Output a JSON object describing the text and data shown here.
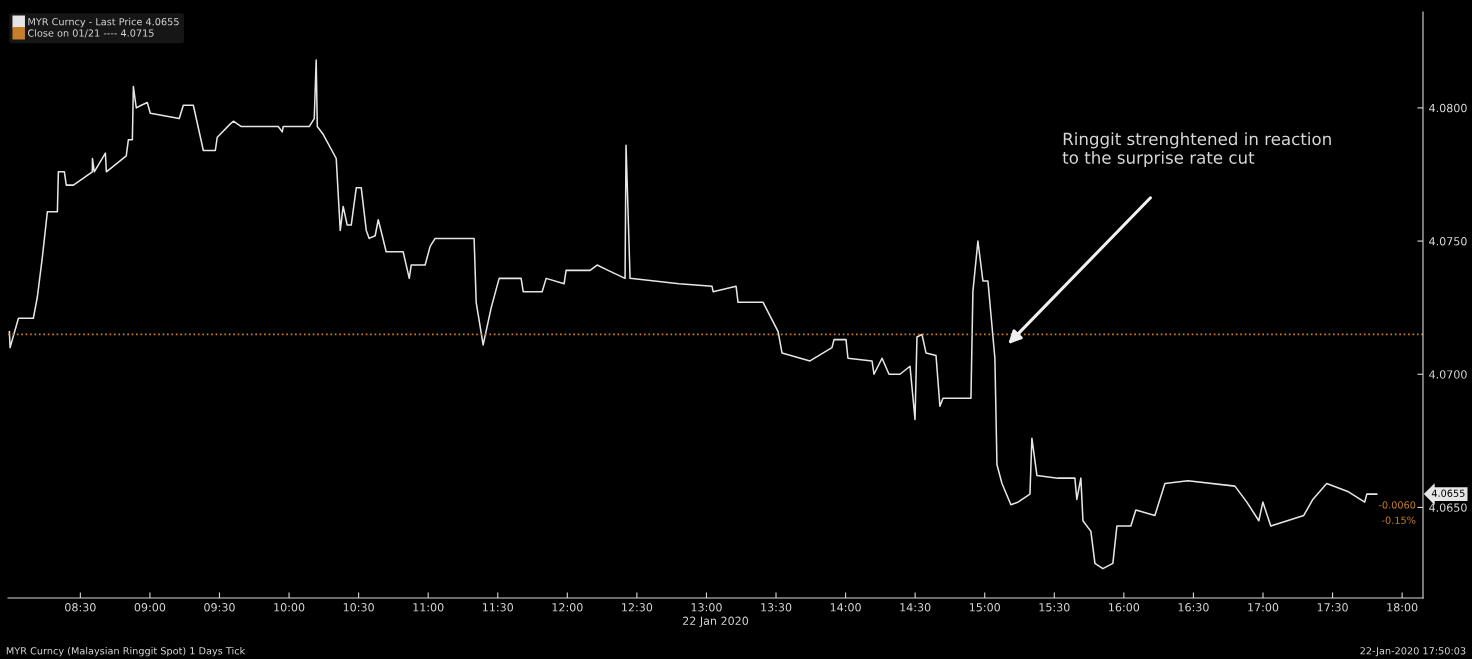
{
  "chart_data": {
    "type": "line",
    "xlabel": "22 Jan 2020",
    "legend": "top left",
    "grid": false,
    "line_style": "solid",
    "marker": "none",
    "xlim": [
      7.98,
      18.15
    ],
    "ylim": [
      4.0616,
      4.0836
    ],
    "xticks": [
      {
        "value": 8.5,
        "label": "08:30"
      },
      {
        "value": 9,
        "label": "09:00"
      },
      {
        "value": 9.5,
        "label": "09:30"
      },
      {
        "value": 10,
        "label": "10:00"
      },
      {
        "value": 10.5,
        "label": "10:30"
      },
      {
        "value": 11,
        "label": "11:00"
      },
      {
        "value": 11.5,
        "label": "11:30"
      },
      {
        "value": 12,
        "label": "12:00"
      },
      {
        "value": 12.5,
        "label": "12:30"
      },
      {
        "value": 13,
        "label": "13:00"
      },
      {
        "value": 13.5,
        "label": "13:30"
      },
      {
        "value": 14,
        "label": "14:00"
      },
      {
        "value": 14.5,
        "label": "14:30"
      },
      {
        "value": 15,
        "label": "15:00"
      },
      {
        "value": 15.5,
        "label": "15:30"
      },
      {
        "value": 16,
        "label": "16:00"
      },
      {
        "value": 16.5,
        "label": "16:30"
      },
      {
        "value": 17,
        "label": "17:00"
      },
      {
        "value": 17.5,
        "label": "17:30"
      },
      {
        "value": 18,
        "label": "18:00"
      }
    ],
    "yticks": [
      {
        "value": 4.065,
        "label": "4.0650"
      },
      {
        "value": 4.07,
        "label": "4.0700"
      },
      {
        "value": 4.075,
        "label": "4.0750"
      },
      {
        "value": 4.08,
        "label": "4.0800"
      }
    ],
    "series": [
      {
        "name": "MYR Curncy - Last Price 4.0655",
        "color": "#e6e6e6",
        "x": [
          7.99,
          7.995,
          8.055,
          8.162,
          8.191,
          8.227,
          8.263,
          8.335,
          8.342,
          8.385,
          8.399,
          8.45,
          8.586,
          8.587,
          8.6,
          8.68,
          8.687,
          8.83,
          8.845,
          8.874,
          8.881,
          8.902,
          8.938,
          8.981,
          9.003,
          9.211,
          9.24,
          9.312,
          9.384,
          9.47,
          9.484,
          9.578,
          9.6,
          9.657,
          9.922,
          9.951,
          9.958,
          10.145,
          10.181,
          10.195,
          10.203,
          10.246,
          10.339,
          10.368,
          10.389,
          10.418,
          10.447,
          10.483,
          10.519,
          10.555,
          10.576,
          10.619,
          10.641,
          10.67,
          10.698,
          10.82,
          10.864,
          10.878,
          10.978,
          11.014,
          11.05,
          11.33,
          11.345,
          11.395,
          11.453,
          11.51,
          11.668,
          11.683,
          11.819,
          11.848,
          11.977,
          11.991,
          12.164,
          12.214,
          12.293,
          12.415,
          12.422,
          12.451,
          12.803,
          13.04,
          13.048,
          13.213,
          13.227,
          13.407,
          13.515,
          13.543,
          13.744,
          13.902,
          13.917,
          14.003,
          14.017,
          14.19,
          14.204,
          14.262,
          14.312,
          14.391,
          14.463,
          14.499,
          14.513,
          14.549,
          14.578,
          14.65,
          14.678,
          14.7,
          14.901,
          14.915,
          14.951,
          14.987,
          15.023,
          15.073,
          15.088,
          15.124,
          15.188,
          15.239,
          15.325,
          15.339,
          15.375,
          15.526,
          15.648,
          15.662,
          15.691,
          15.706,
          15.763,
          15.792,
          15.849,
          15.921,
          15.95,
          16.05,
          16.086,
          16.223,
          16.295,
          16.46,
          16.798,
          16.884,
          16.97,
          16.999,
          17.056,
          17.293,
          17.358,
          17.458,
          17.609,
          17.731,
          17.746,
          17.817
        ],
        "values": [
          4.0716,
          4.071,
          4.0721,
          4.0721,
          4.0729,
          4.0744,
          4.0761,
          4.0761,
          4.0776,
          4.0776,
          4.0771,
          4.0771,
          4.0776,
          4.0781,
          4.0776,
          4.0783,
          4.0776,
          4.0782,
          4.0788,
          4.0788,
          4.0808,
          4.08,
          4.0801,
          4.0802,
          4.0798,
          4.0796,
          4.0801,
          4.0801,
          4.0784,
          4.0784,
          4.0789,
          4.0794,
          4.0795,
          4.0793,
          4.0793,
          4.0791,
          4.0793,
          4.0793,
          4.0796,
          4.0818,
          4.0793,
          4.079,
          4.0781,
          4.0754,
          4.0763,
          4.0756,
          4.0756,
          4.077,
          4.077,
          4.0754,
          4.0751,
          4.0752,
          4.0758,
          4.0752,
          4.0746,
          4.0746,
          4.0736,
          4.0741,
          4.0741,
          4.0748,
          4.0751,
          4.0751,
          4.0727,
          4.0711,
          4.0725,
          4.0736,
          4.0736,
          4.0731,
          4.0731,
          4.0736,
          4.0734,
          4.0739,
          4.0739,
          4.0741,
          4.0739,
          4.0736,
          4.0786,
          4.0736,
          4.0734,
          4.0733,
          4.0731,
          4.0733,
          4.0727,
          4.0727,
          4.0716,
          4.0708,
          4.0705,
          4.071,
          4.0713,
          4.0713,
          4.0706,
          4.0705,
          4.07,
          4.0706,
          4.07,
          4.07,
          4.0703,
          4.0683,
          4.0714,
          4.0715,
          4.0708,
          4.0707,
          4.0688,
          4.0691,
          4.0691,
          4.0731,
          4.075,
          4.0735,
          4.0735,
          4.0706,
          4.0666,
          4.0659,
          4.0651,
          4.0652,
          4.0655,
          4.0676,
          4.0662,
          4.0661,
          4.0661,
          4.0653,
          4.0661,
          4.0645,
          4.0641,
          4.0629,
          4.0627,
          4.0629,
          4.0643,
          4.0643,
          4.0649,
          4.0647,
          4.0659,
          4.066,
          4.0658,
          4.0652,
          4.0645,
          4.0652,
          4.0643,
          4.0647,
          4.0653,
          4.0659,
          4.0656,
          4.0652,
          4.0655,
          4.0655
        ]
      }
    ],
    "ref_lines": [
      {
        "axis": "y",
        "value": 4.0715,
        "label": "Close on 01/21 ---- 4.0715",
        "color": "#c87f2a",
        "line_style": "dotted"
      }
    ],
    "annotations": [
      "Ringgit strenghtened in reaction\nto the surprise rate cut",
      "4.0655",
      "-0.0060",
      "-0.15%",
      "MYR Curncy (Malaysian Ringgit Spot) 1 Days Tick",
      "22-Jan-2020 17:50:03"
    ]
  }
}
